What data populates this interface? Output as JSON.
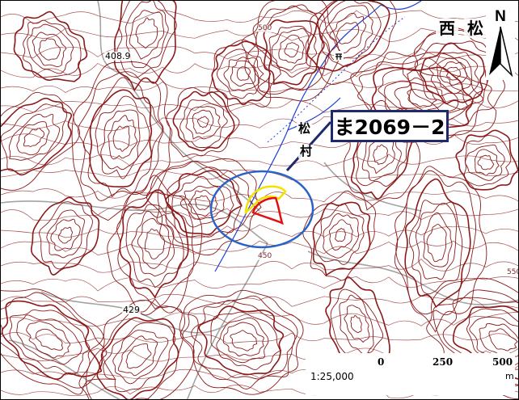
{
  "map": {
    "place_names": [
      "西",
      "松",
      "松",
      "村"
    ],
    "site_label": "ま2069－2",
    "north_label": "N",
    "elevations": [
      "408.9",
      "429"
    ],
    "contour_labels": [
      "500",
      "550",
      "450"
    ],
    "scale": {
      "ratio": "1:25,000",
      "ticks": [
        "0",
        "250",
        "500"
      ],
      "unit": "m"
    }
  },
  "colors": {
    "contour": "#8b1a1a",
    "river": "#1e3fd8",
    "road": "#9a9a9a",
    "circle": "#2a62c8",
    "site_outer": "#f2e200",
    "site_inner": "#e01010",
    "label_border": "#1f2a6b"
  }
}
